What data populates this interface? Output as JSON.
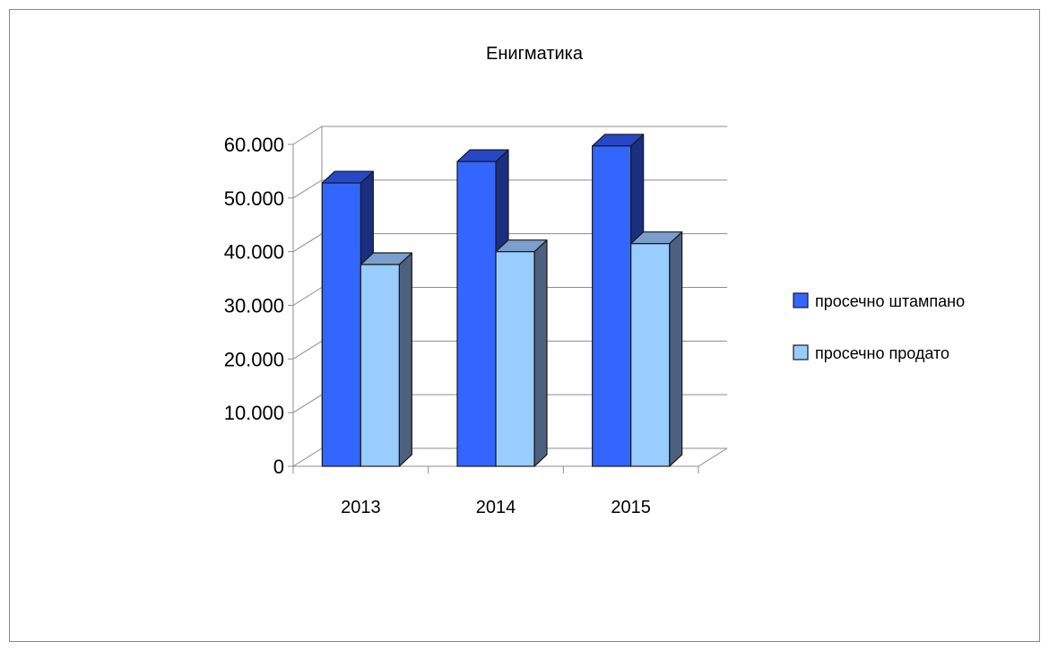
{
  "chart_data": {
    "type": "bar",
    "title": "Енигматика",
    "categories": [
      "2013",
      "2014",
      "2015"
    ],
    "series": [
      {
        "name": "просечно штампано",
        "values": [
          52800,
          56800,
          59700
        ],
        "color_front": "#3366ff",
        "color_top": "#2747c9",
        "color_side": "#1a2f80"
      },
      {
        "name": "просечно продато",
        "values": [
          37600,
          40000,
          41500
        ],
        "color_front": "#99ccff",
        "color_top": "#7b9ecc",
        "color_side": "#4d6080"
      }
    ],
    "y_ticks": [
      "0",
      "10.000",
      "20.000",
      "30.000",
      "40.000",
      "50.000",
      "60.000"
    ],
    "ylim": [
      0,
      60000
    ],
    "y_step": 10000,
    "xlabel": "",
    "ylabel": "",
    "grid": true,
    "legend_position": "right"
  }
}
